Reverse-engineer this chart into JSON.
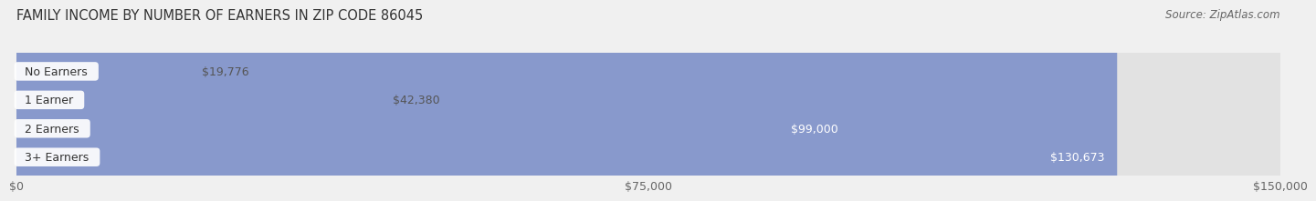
{
  "title": "FAMILY INCOME BY NUMBER OF EARNERS IN ZIP CODE 86045",
  "source": "Source: ZipAtlas.com",
  "categories": [
    "No Earners",
    "1 Earner",
    "2 Earners",
    "3+ Earners"
  ],
  "values": [
    19776,
    42380,
    99000,
    130673
  ],
  "bar_colors": [
    "#a8c8e8",
    "#c4a8c8",
    "#3dbdb8",
    "#8899cc"
  ],
  "label_colors": [
    "#555555",
    "#555555",
    "#ffffff",
    "#ffffff"
  ],
  "value_inside_threshold": 60000,
  "xlim": [
    0,
    150000
  ],
  "xticks": [
    0,
    75000,
    150000
  ],
  "xtick_labels": [
    "$0",
    "$75,000",
    "$150,000"
  ],
  "background_color": "#f0f0f0",
  "bar_background_color": "#e2e2e2",
  "bar_height": 0.6,
  "title_fontsize": 10.5,
  "source_fontsize": 8.5,
  "label_fontsize": 9,
  "value_fontsize": 9,
  "category_fontsize": 9
}
